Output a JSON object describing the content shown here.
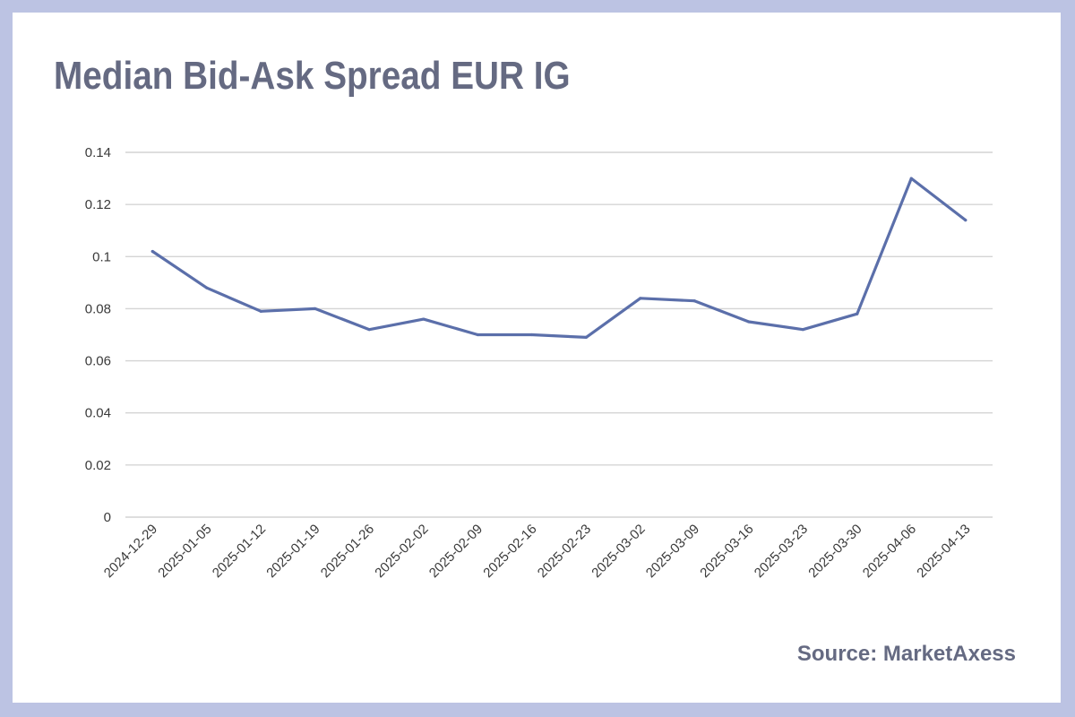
{
  "chart_data": {
    "type": "line",
    "title": "Median Bid-Ask Spread EUR IG",
    "source": "Source: MarketAxess",
    "x": [
      "2024-12-29",
      "2025-01-05",
      "2025-01-12",
      "2025-01-19",
      "2025-01-26",
      "2025-02-02",
      "2025-02-09",
      "2025-02-16",
      "2025-02-23",
      "2025-03-02",
      "2025-03-09",
      "2025-03-16",
      "2025-03-23",
      "2025-03-30",
      "2025-04-06",
      "2025-04-13"
    ],
    "series": [
      {
        "values": [
          0.102,
          0.088,
          0.079,
          0.08,
          0.072,
          0.076,
          0.07,
          0.07,
          0.069,
          0.084,
          0.083,
          0.075,
          0.072,
          0.078,
          0.13,
          0.114
        ]
      }
    ],
    "yticks": [
      "0",
      "0.02",
      "0.04",
      "0.06",
      "0.08",
      "0.1",
      "0.12",
      "0.14"
    ],
    "ylim": [
      0,
      0.14
    ],
    "grid": true,
    "line_color": "#5b6faa",
    "grid_color": "#d4d4d4"
  }
}
